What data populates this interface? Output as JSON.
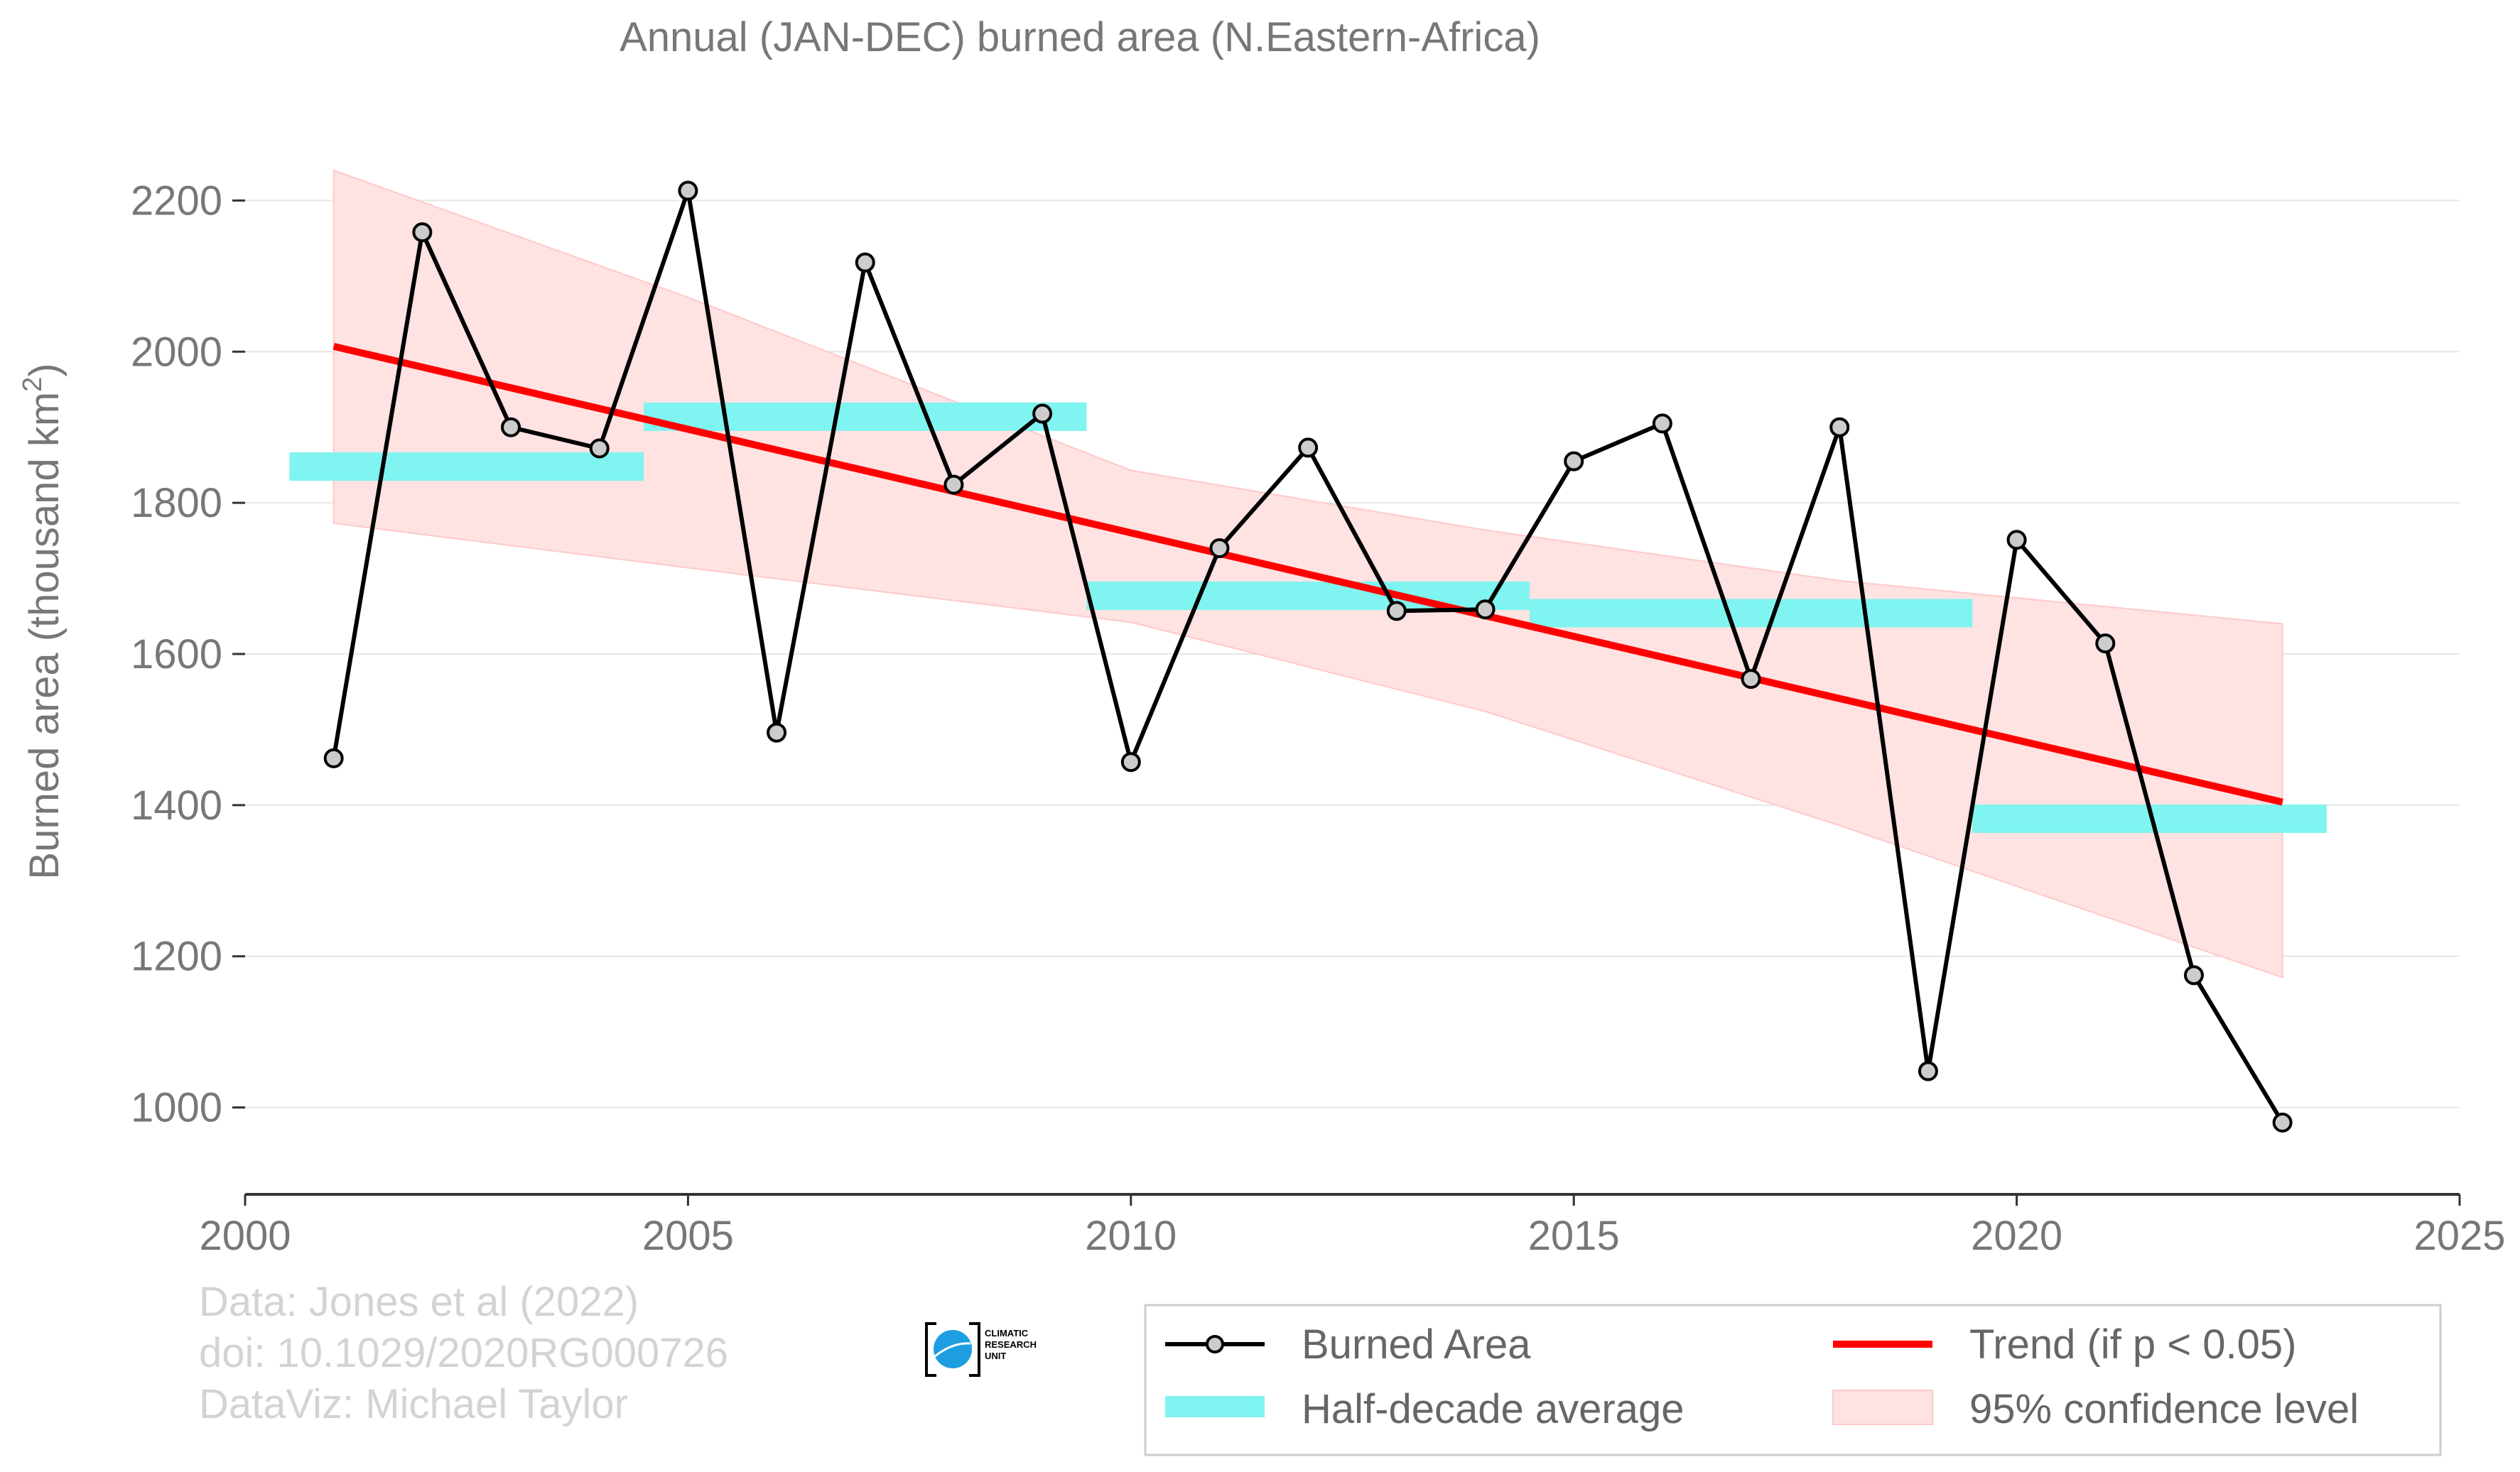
{
  "chart_data": {
    "type": "line",
    "title": "Annual (JAN-DEC) burned area (N.Eastern-Africa)",
    "ylabel_main": "Burned area (thousand km",
    "ylabel_sup": "2",
    "ylabel_end": ")",
    "xlabel": "",
    "xlim": [
      2000,
      2025
    ],
    "ylim": [
      885,
      2315
    ],
    "x_ticks": [
      2000,
      2005,
      2010,
      2015,
      2020,
      2025
    ],
    "y_ticks": [
      1000,
      1200,
      1400,
      1600,
      1800,
      2000,
      2200
    ],
    "grid": "horizontal",
    "legend_position": "bottom-right",
    "colors": {
      "line": "#000000",
      "marker_fill": "#cccccc",
      "trend": "#ff0000",
      "half_decade": "#7ff4f0",
      "confidence": "#ffe2e2",
      "confidence_edge": "#ffc9c9",
      "grid": "#e6e6e6",
      "axis": "#333333"
    },
    "series": [
      {
        "name": "Burned Area",
        "x": [
          2001,
          2002,
          2003,
          2004,
          2005,
          2006,
          2007,
          2008,
          2009,
          2010,
          2011,
          2012,
          2013,
          2014,
          2015,
          2016,
          2017,
          2018,
          2019,
          2020,
          2021,
          2022,
          2023
        ],
        "y": [
          1462,
          2158,
          1900,
          1872,
          2213,
          1496,
          2118,
          1824,
          1918,
          1457,
          1740,
          1873,
          1657,
          1659,
          1855,
          1905,
          1567,
          1900,
          1048,
          1751,
          1614,
          1175,
          980
        ]
      },
      {
        "name": "Trend (if p < 0.05)",
        "x": [
          2001,
          2023
        ],
        "y": [
          2007,
          1404
        ]
      }
    ],
    "half_decade_average": {
      "name": "Half-decade average",
      "segments": [
        {
          "x0": 2000.5,
          "x1": 2004.5,
          "y": 1848
        },
        {
          "x0": 2004.5,
          "x1": 2009.5,
          "y": 1914
        },
        {
          "x0": 2009.5,
          "x1": 2014.5,
          "y": 1677
        },
        {
          "x0": 2014.5,
          "x1": 2019.5,
          "y": 1654
        },
        {
          "x0": 2019.5,
          "x1": 2023.5,
          "y": 1382
        }
      ]
    },
    "confidence_band": {
      "name": "95% confidence level",
      "x": [
        2001,
        2005,
        2010,
        2014,
        2018,
        2023
      ],
      "upper": [
        2240,
        2072,
        1843,
        1764,
        1697,
        1640
      ],
      "lower": [
        1773,
        1714,
        1642,
        1524,
        1373,
        1172
      ]
    }
  },
  "credits": {
    "line1": "Data: Jones et al (2022)",
    "line2": "doi: 10.1029/2020RG000726",
    "line3": "DataViz: Michael Taylor"
  },
  "logo": {
    "line1": "CLIMATIC",
    "line2": "RESEARCH",
    "line3": "UNIT"
  },
  "legend": {
    "burned_area": "Burned Area",
    "trend": "Trend (if p < 0.05)",
    "half_decade": "Half-decade average",
    "confidence": "95% confidence level"
  }
}
